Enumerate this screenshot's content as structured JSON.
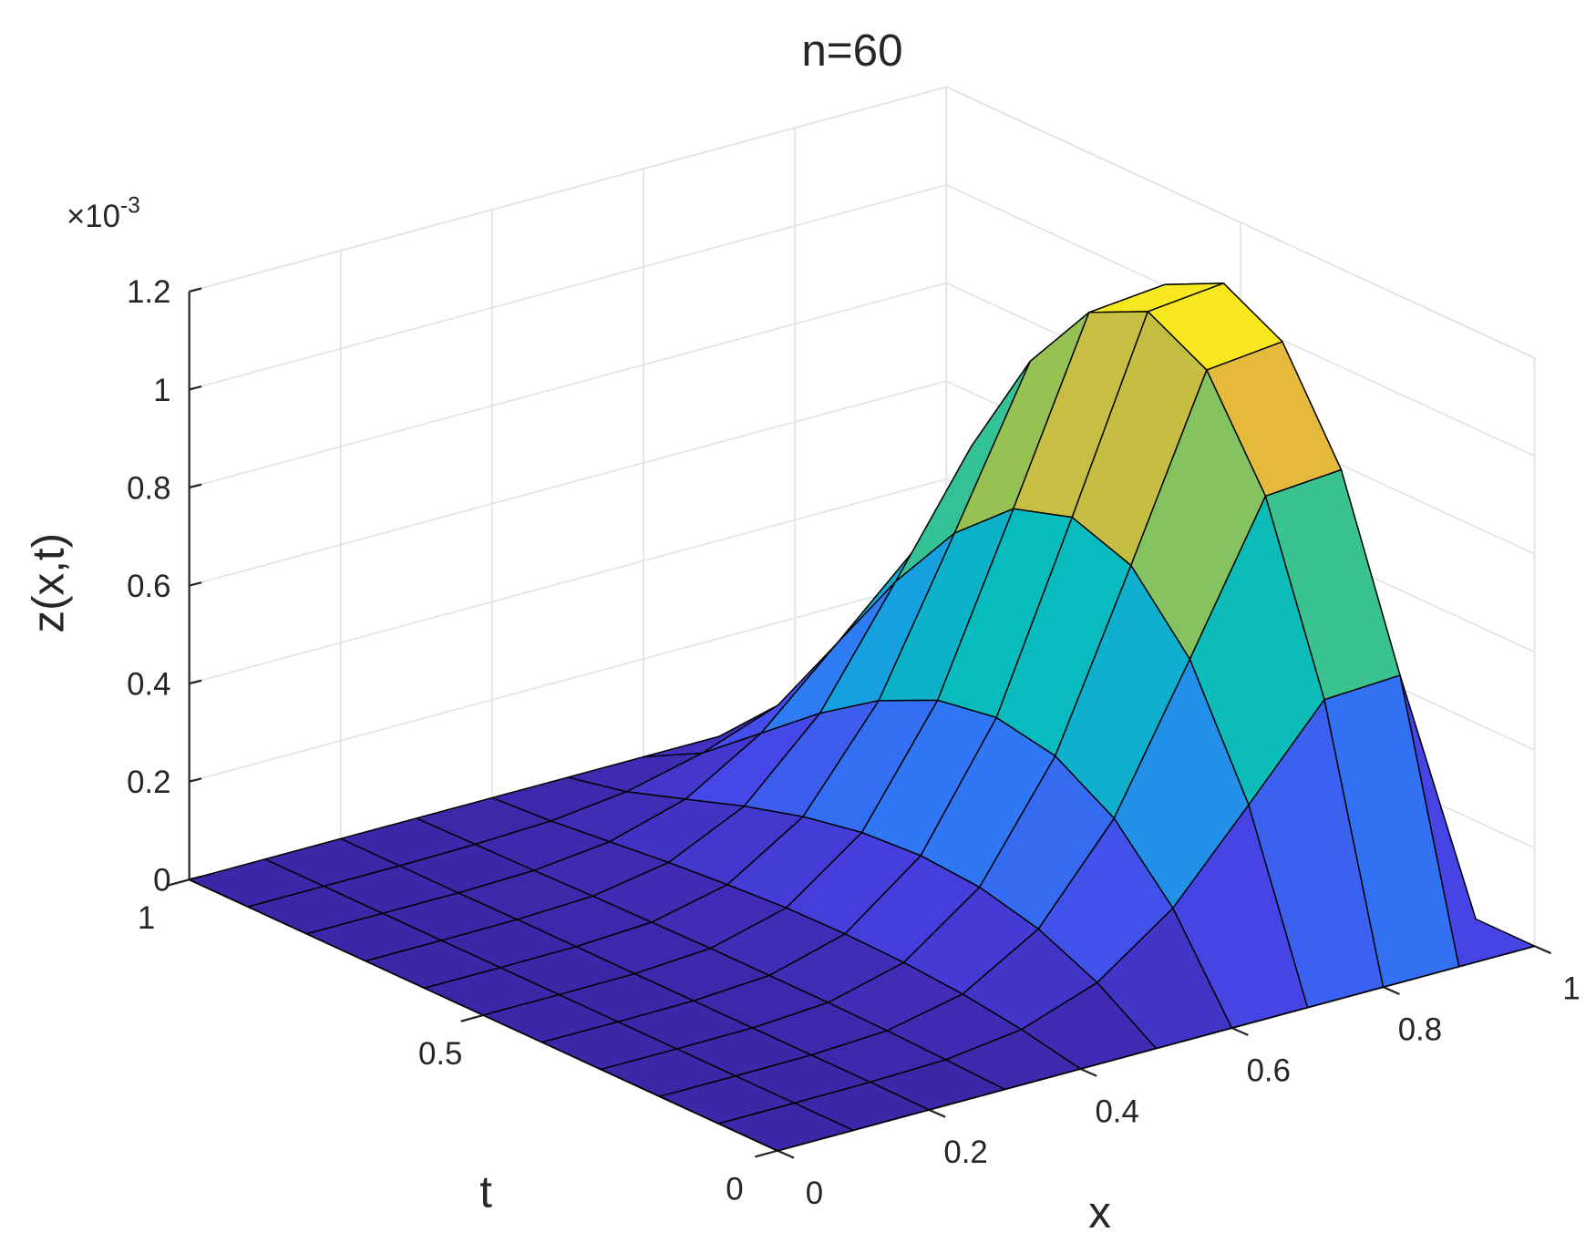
{
  "chart_data": {
    "type": "surface",
    "title": "n=60",
    "xlabel": "x",
    "ylabel": "t",
    "zlabel": "z(x,t)",
    "z_multiplier": {
      "base": "×10",
      "power": "-3"
    },
    "x": [
      0,
      0.1,
      0.2,
      0.3,
      0.4,
      0.5,
      0.6,
      0.7,
      0.8,
      0.9,
      1
    ],
    "y": [
      0,
      0.1,
      0.2,
      0.3,
      0.4,
      0.5,
      0.6,
      0.7,
      0.8,
      0.9,
      1
    ],
    "z": [
      [
        0,
        0,
        0,
        0,
        0,
        0,
        0,
        0,
        0,
        0,
        0
      ],
      [
        0,
        0,
        0.001,
        0.005,
        0.025,
        0.079,
        0.189,
        0.358,
        0.531,
        0.539,
        0
      ],
      [
        0,
        0,
        0.001,
        0.009,
        0.042,
        0.133,
        0.317,
        0.6,
        0.891,
        0.903,
        0
      ],
      [
        0,
        0,
        0.001,
        0.011,
        0.051,
        0.163,
        0.389,
        0.736,
        1.093,
        1.109,
        0
      ],
      [
        0,
        0,
        0.001,
        0.011,
        0.054,
        0.172,
        0.412,
        0.779,
        1.157,
        1.173,
        0
      ],
      [
        0,
        0,
        0.001,
        0.011,
        0.052,
        0.164,
        0.392,
        0.741,
        1.1,
        1.115,
        0
      ],
      [
        0,
        0,
        0.001,
        0.009,
        0.044,
        0.141,
        0.336,
        0.636,
        0.945,
        0.958,
        0
      ],
      [
        0,
        0,
        0.001,
        0.007,
        0.034,
        0.107,
        0.255,
        0.482,
        0.716,
        0.726,
        0
      ],
      [
        0,
        0,
        0,
        0.004,
        0.021,
        0.066,
        0.159,
        0.3,
        0.445,
        0.451,
        0
      ],
      [
        0,
        0,
        0,
        0.002,
        0.008,
        0.026,
        0.063,
        0.119,
        0.177,
        0.18,
        0
      ],
      [
        0,
        0,
        0,
        0,
        0,
        0,
        0,
        0,
        0,
        0,
        0
      ]
    ],
    "xlim": [
      0,
      1
    ],
    "ylim": [
      0,
      1
    ],
    "zlim": [
      0,
      1.2
    ],
    "xticks": [
      0,
      0.2,
      0.4,
      0.6,
      0.8,
      1
    ],
    "yticks": [
      0,
      0.5,
      1
    ],
    "zticks": [
      0,
      0.2,
      0.4,
      0.6,
      0.8,
      1,
      1.2
    ],
    "grid": true,
    "colormap": "parula",
    "edgecolor": "#000000"
  }
}
